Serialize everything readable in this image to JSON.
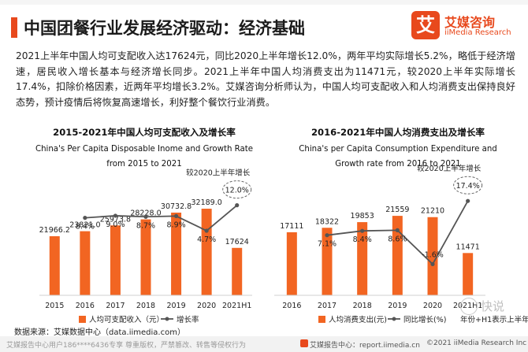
{
  "header": {
    "title": "中国团餐行业发展经济驱动：经济基础",
    "logo_mark": "艾",
    "logo_cn": "艾媒咨询",
    "logo_en": "iiMedia Research"
  },
  "paragraph": "2021上半年中国人均可支配收入达17624元，同比2020上半年增长12.0%，两年平均实际增长5.2%，略低于经济增速，居民收入增长基本与经济增长同步。2021上半年中国人均消费支出为11471元，较2020上半年实际增长17.4%，扣除价格因素，近两年平均增长3.2%。艾媒咨询分析师认为，中国人均可支配收入和人均消费支出保持良好态势，预计疫情后将恢复高速增长，利好整个餐饮行业消费。",
  "colors": {
    "accent": "#e8491d",
    "bar": "#f26522",
    "line": "#555555"
  },
  "chart_data": [
    {
      "type": "bar",
      "title": "2015-2021年中国人均可支配收入及增长率",
      "subtitle_line1": "China's Per Capita Disposable Inome and Growth Rate",
      "subtitle_line2": "from 2015 to 2021",
      "categories": [
        "2015",
        "2016",
        "2017",
        "2018",
        "2019",
        "2020",
        "2021H1"
      ],
      "series": [
        {
          "name": "人均可支配收入（元）",
          "type": "bar",
          "values": [
            21966.2,
            23821.0,
            25973.8,
            28228.0,
            30732.8,
            32189.0,
            17624
          ]
        },
        {
          "name": "增长率",
          "type": "line",
          "values": [
            null,
            8.4,
            9.0,
            8.7,
            8.9,
            4.7,
            12.0
          ]
        }
      ],
      "value_labels": [
        "21966.2",
        "23821.0",
        "25973.8",
        "28228.0",
        "30732.8",
        "32189.0",
        "17624"
      ],
      "rate_labels": [
        "",
        "8.4%",
        "9.0%",
        "8.7%",
        "8.9%",
        "4.7%",
        "12.0%"
      ],
      "annotation": "较2020上半年增长",
      "ylim": [
        0,
        36000
      ],
      "rate_ylim": [
        -5,
        13.5
      ],
      "legend": "bottom"
    },
    {
      "type": "bar",
      "title": "2016-2021年中国人均消费支出及增长率",
      "subtitle_line1": "China's per Capita Consumption Expenditure and",
      "subtitle_line2": "Growth rate from 2016 to 2021",
      "categories": [
        "2016",
        "2017",
        "2018",
        "2019",
        "2020",
        "2021H1"
      ],
      "series": [
        {
          "name": "人均消费支出(元)",
          "type": "bar",
          "values": [
            17111,
            18322,
            19853,
            21559,
            21210,
            11471
          ]
        },
        {
          "name": "同比增长(%)",
          "type": "line",
          "values": [
            null,
            7.1,
            8.4,
            8.6,
            -1.6,
            17.4
          ]
        }
      ],
      "value_labels": [
        "17111",
        "18322",
        "19853",
        "21559",
        "21210",
        "11471"
      ],
      "rate_labels": [
        "",
        "7.1%",
        "8.4%",
        "8.6%",
        "-1.6%",
        "17.4%"
      ],
      "annotation": "较2020上半年增长",
      "ylim": [
        0,
        25000
      ],
      "rate_ylim": [
        -6,
        21
      ],
      "legend": "bottom",
      "legend_note": "年份+H1表示上半年"
    }
  ],
  "footer": {
    "source": "数据来源：艾媒数据中心（data.iimedia.com）",
    "watermark": "艾媒报告中心用户186****6436专享 尊重版权，严禁篡改、转售等侵权行为",
    "center": "艾媒报告中心：report.iimedia.cn",
    "right": "©2021  iiMedia Research  Inc",
    "wm_text": "快说"
  }
}
